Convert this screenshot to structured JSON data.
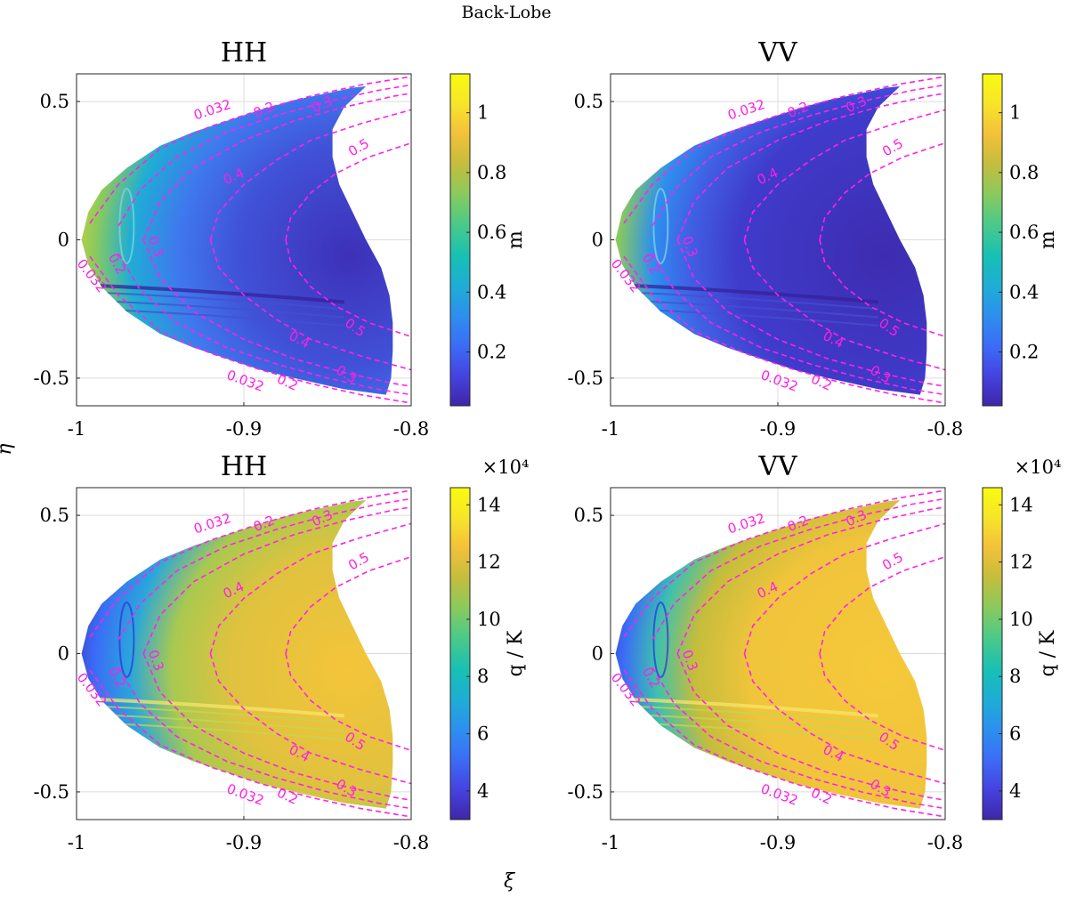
{
  "figure": {
    "suptitle": "Back-Lobe",
    "shared_ylabel": "η",
    "shared_xlabel": "ξ",
    "colors": {
      "contour": "#ff22e6",
      "colormap": [
        "#3e26a8",
        "#4543e0",
        "#3b6cf6",
        "#2d8fef",
        "#1eadd5",
        "#17c0b4",
        "#4cca88",
        "#8bca5c",
        "#c5bd3c",
        "#f3c13a",
        "#f7e529",
        "#f9fb0e"
      ]
    }
  },
  "chart_data": [
    {
      "type": "heatmap",
      "title": "HH",
      "xlabel": "ξ",
      "ylabel": "η",
      "xlim": [
        -1,
        -0.8
      ],
      "ylim": [
        -0.6,
        0.6
      ],
      "xticks": [
        "-1",
        "-0.9",
        "-0.8"
      ],
      "yticks": [
        "0.5",
        "0",
        "-0.5"
      ],
      "colorbar": {
        "label": "m",
        "range": [
          0.02,
          1.13
        ],
        "ticks": [
          "1",
          "0.8",
          "0.6",
          "0.4",
          "0.2"
        ],
        "exponent": ""
      },
      "field": "m",
      "contour_labels": [
        "0.032",
        "0.2",
        "0.3",
        "0.4",
        "0.5"
      ],
      "grid": true
    },
    {
      "type": "heatmap",
      "title": "VV",
      "xlabel": "ξ",
      "ylabel": "η",
      "xlim": [
        -1,
        -0.8
      ],
      "ylim": [
        -0.6,
        0.6
      ],
      "xticks": [
        "-1",
        "-0.9",
        "-0.8"
      ],
      "yticks": [
        "0.5",
        "0",
        "-0.5"
      ],
      "colorbar": {
        "label": "m",
        "range": [
          0.02,
          1.13
        ],
        "ticks": [
          "1",
          "0.8",
          "0.6",
          "0.4",
          "0.2"
        ],
        "exponent": ""
      },
      "field": "m",
      "contour_labels": [
        "0.032",
        "0.2",
        "0.3",
        "0.4",
        "0.5"
      ],
      "grid": true
    },
    {
      "type": "heatmap",
      "title": "HH",
      "xlabel": "ξ",
      "ylabel": "η",
      "xlim": [
        -1,
        -0.8
      ],
      "ylim": [
        -0.6,
        0.6
      ],
      "xticks": [
        "-1",
        "-0.9",
        "-0.8"
      ],
      "yticks": [
        "0.5",
        "0",
        "-0.5"
      ],
      "colorbar": {
        "label": "q / K",
        "range": [
          3,
          14.6
        ],
        "ticks": [
          "14",
          "12",
          "10",
          "8",
          "6",
          "4"
        ],
        "exponent": "×10⁴"
      },
      "field": "q",
      "contour_labels": [
        "0.032",
        "0.2",
        "0.3",
        "0.4",
        "0.5"
      ],
      "grid": true
    },
    {
      "type": "heatmap",
      "title": "VV",
      "xlabel": "ξ",
      "ylabel": "η",
      "xlim": [
        -1,
        -0.8
      ],
      "ylim": [
        -0.6,
        0.6
      ],
      "xticks": [
        "-1",
        "-0.9",
        "-0.8"
      ],
      "yticks": [
        "0.5",
        "0",
        "-0.5"
      ],
      "colorbar": {
        "label": "q / K",
        "range": [
          3,
          14.6
        ],
        "ticks": [
          "14",
          "12",
          "10",
          "8",
          "6",
          "4"
        ],
        "exponent": "×10⁴"
      },
      "field": "q",
      "contour_labels": [
        "0.032",
        "0.2",
        "0.3",
        "0.4",
        "0.5"
      ],
      "grid": true
    }
  ]
}
